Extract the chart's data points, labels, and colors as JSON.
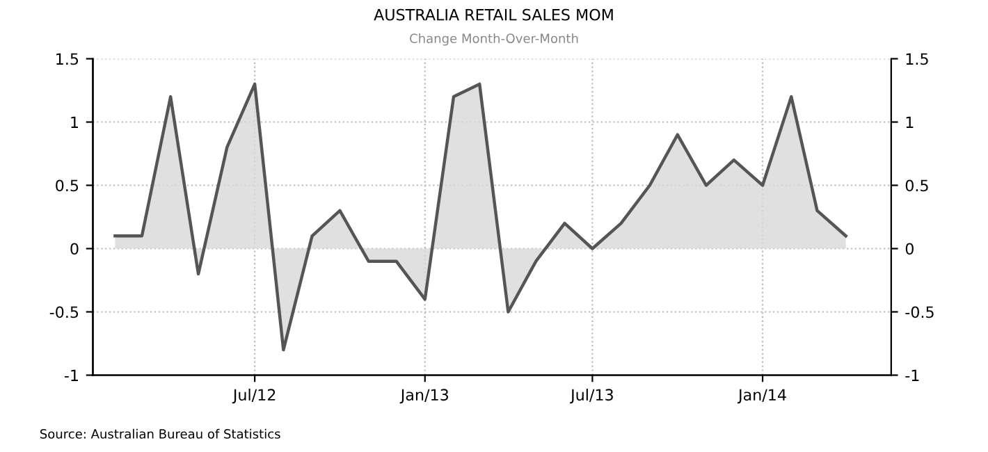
{
  "chart_data": {
    "type": "area",
    "title": "AUSTRALIA RETAIL SALES MOM",
    "subtitle": "Change Month-Over-Month",
    "x": [
      "2012-02",
      "2012-03",
      "2012-04",
      "2012-05",
      "2012-06",
      "2012-07",
      "2012-08",
      "2012-09",
      "2012-10",
      "2012-11",
      "2012-12",
      "2013-01",
      "2013-02",
      "2013-03",
      "2013-04",
      "2013-05",
      "2013-06",
      "2013-07",
      "2013-08",
      "2013-09",
      "2013-10",
      "2013-11",
      "2013-12",
      "2014-01",
      "2014-02",
      "2014-03",
      "2014-04"
    ],
    "series": [
      {
        "color": "#555555",
        "values": [
          0.1,
          0.1,
          1.2,
          -0.2,
          0.8,
          1.3,
          -0.8,
          0.1,
          0.3,
          -0.1,
          -0.1,
          -0.4,
          1.2,
          1.3,
          -0.5,
          -0.1,
          0.2,
          0.0,
          0.2,
          0.5,
          0.9,
          0.5,
          0.7,
          0.5,
          1.2,
          0.3,
          0.1
        ]
      }
    ],
    "xlim": [
      "2012-01-08",
      "2014-05-20"
    ],
    "xticks": [
      {
        "value": "2012-07",
        "label": "Jul/12"
      },
      {
        "value": "2013-01",
        "label": "Jan/13"
      },
      {
        "value": "2013-07",
        "label": "Jul/13"
      },
      {
        "value": "2014-01",
        "label": "Jan/14"
      }
    ],
    "ylim": [
      -1,
      1.5
    ],
    "yticks": [
      -1,
      -0.5,
      0,
      0.5,
      1,
      1.5
    ],
    "y2lim": [
      -1,
      1.5
    ],
    "y2ticks": [
      -1,
      -0.5,
      0,
      0.5,
      1,
      1.5
    ],
    "grid": true,
    "legend": false,
    "annotations": [
      "Source: Australian Bureau of Statistics"
    ]
  }
}
